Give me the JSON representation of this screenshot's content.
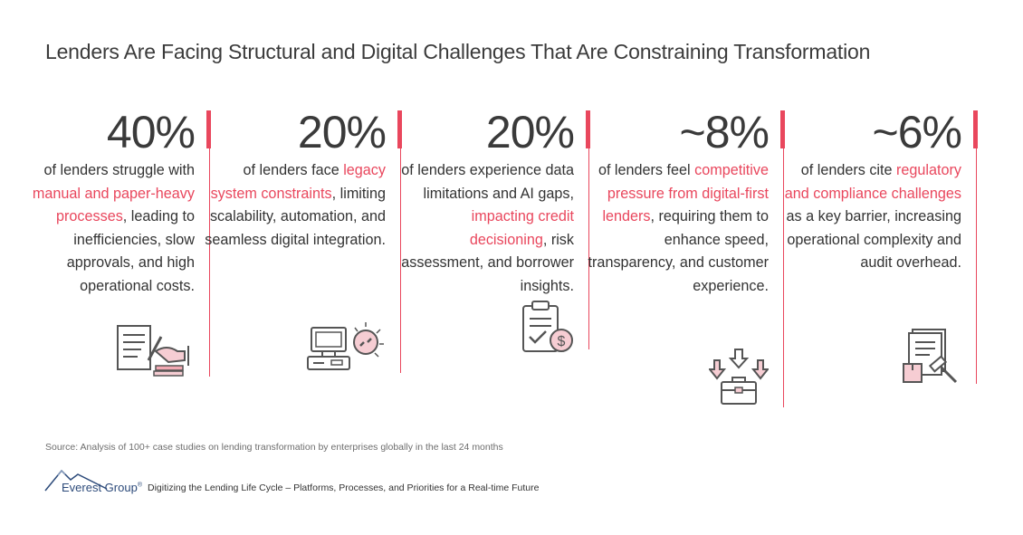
{
  "title": "Lenders Are Facing Structural and Digital Challenges That Are Constraining Transformation",
  "colors": {
    "accent": "#e9475d",
    "text": "#333333",
    "brand": "#2c4a7a"
  },
  "stats": [
    {
      "value": "40%",
      "lead": "of lenders struggle with ",
      "highlight": "manual and paper-heavy processes",
      "tail": ", leading to inefficiencies, slow approvals, and high operational costs.",
      "icon": "document-signing-icon"
    },
    {
      "value": "20%",
      "lead": "of lenders face ",
      "highlight": "legacy system constraints",
      "tail": ", limiting scalability, automation, and seamless digital integration.",
      "icon": "computer-broken-link-icon"
    },
    {
      "value": "20%",
      "lead": "of lenders experience data limitations and AI gaps, ",
      "highlight": "impacting credit decisioning",
      "tail": ", risk assessment, and borrower insights.",
      "icon": "clipboard-dollar-icon"
    },
    {
      "value": "~8%",
      "lead": "of lenders feel ",
      "highlight": "competitive pressure from digital-first lenders",
      "tail": ", requiring them to enhance speed, transparency, and customer experience.",
      "icon": "pressure-arrows-briefcase-icon"
    },
    {
      "value": "~6%",
      "lead": "of lenders cite ",
      "highlight": "regulatory and compliance challenges",
      "tail": " as a key barrier, increasing operational complexity and audit overhead.",
      "icon": "legal-gavel-documents-icon"
    }
  ],
  "source": "Source: Analysis of 100+ case studies on lending transformation by enterprises globally in the last 24 months",
  "footer": {
    "brand": "Everest Group",
    "registered": "®",
    "report_title": "Digitizing the Lending Life Cycle – Platforms, Processes, and Priorities for a Real-time Future"
  }
}
